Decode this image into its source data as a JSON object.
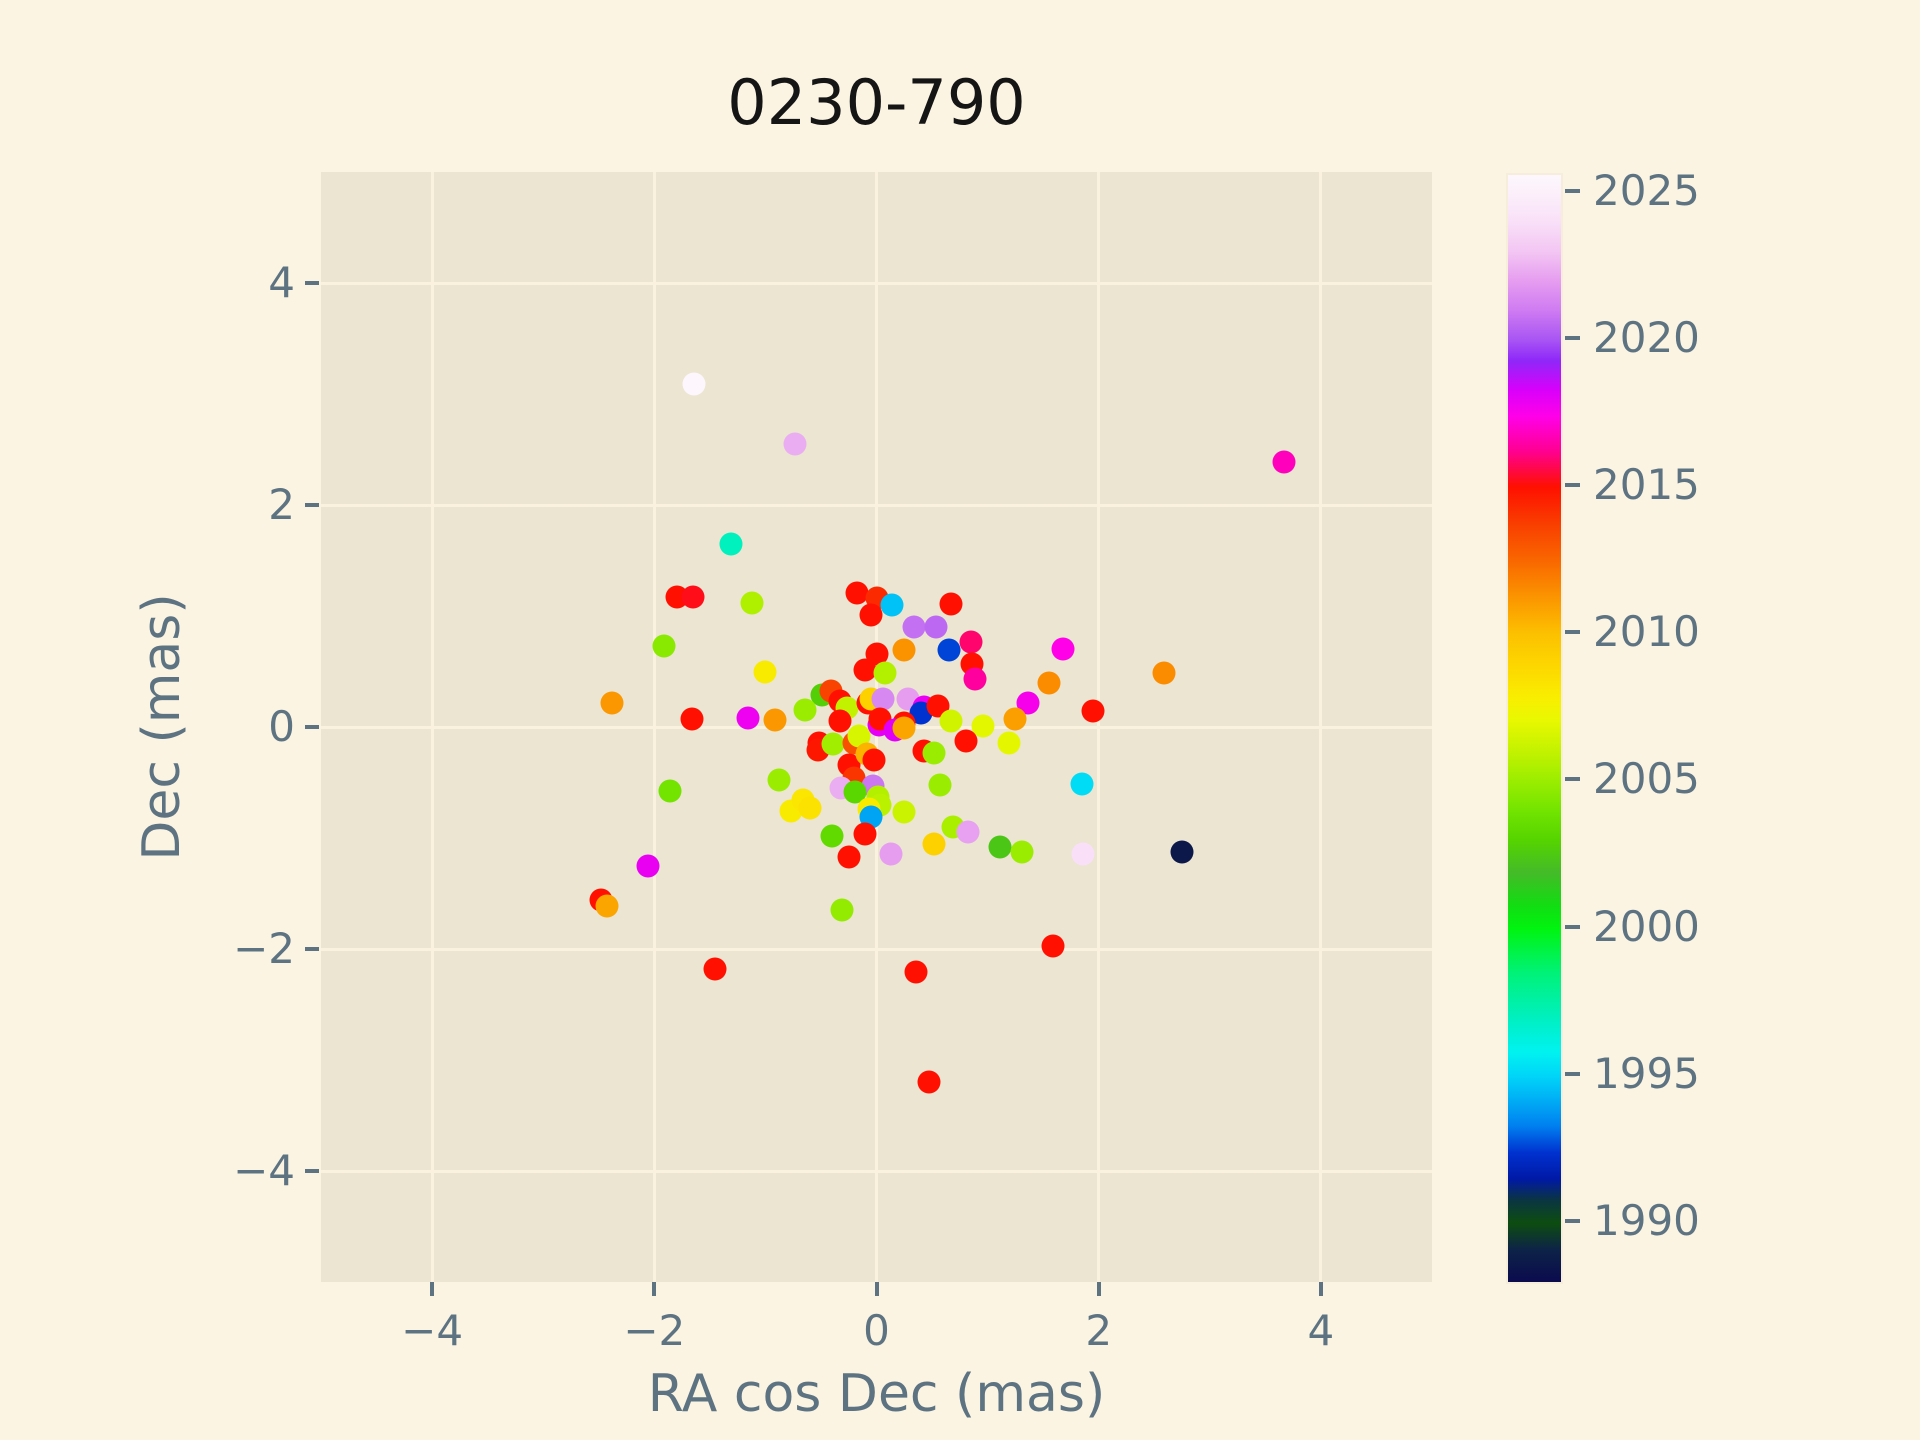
{
  "title": "0230-790",
  "axes": {
    "xlabel": "RA cos Dec (mas)",
    "ylabel": "Dec (mas)",
    "xlim": [
      -5,
      5
    ],
    "ylim": [
      -5,
      5
    ],
    "xticks": {
      "values": [
        -4,
        -2,
        0,
        2,
        4
      ],
      "labels": [
        "−4",
        "−2",
        "0",
        "2",
        "4"
      ]
    },
    "yticks": {
      "values": [
        4,
        2,
        0,
        -2,
        -4
      ],
      "labels": [
        "4",
        "2",
        "0",
        "−2",
        "−4"
      ]
    }
  },
  "colorbar": {
    "vmin": 1988.0,
    "vmax": 2025.6,
    "ticks": {
      "values": [
        1990,
        1995,
        2000,
        2005,
        2010,
        2015,
        2020,
        2025
      ],
      "labels": [
        "1990",
        "1995",
        "2000",
        "2005",
        "2010",
        "2015",
        "2020",
        "2025"
      ]
    },
    "colormap_stops": [
      [
        1988.0,
        "#0b0b4e"
      ],
      [
        1989.1,
        "#0d2347"
      ],
      [
        1990.0,
        "#0d4d10"
      ],
      [
        1990.8,
        "#0a3444"
      ],
      [
        1991.5,
        "#0019a6"
      ],
      [
        1992.4,
        "#0032d0"
      ],
      [
        1993.3,
        "#0080f0"
      ],
      [
        1994.3,
        "#00b4f6"
      ],
      [
        1995.0,
        "#00d5f8"
      ],
      [
        1995.8,
        "#00f2f0"
      ],
      [
        1996.7,
        "#00f0cc"
      ],
      [
        1998.5,
        "#00f277"
      ],
      [
        2000.0,
        "#00f410"
      ],
      [
        2000.8,
        "#12dd12"
      ],
      [
        2001.9,
        "#44bb28"
      ],
      [
        2003.0,
        "#55d400"
      ],
      [
        2004.0,
        "#72e400"
      ],
      [
        2005.0,
        "#9aed00"
      ],
      [
        2006.0,
        "#c2f200"
      ],
      [
        2007.1,
        "#e9f800"
      ],
      [
        2007.8,
        "#f8ef00"
      ],
      [
        2008.8,
        "#fdd900"
      ],
      [
        2010.0,
        "#fcc100"
      ],
      [
        2011.3,
        "#fb9300"
      ],
      [
        2012.5,
        "#f96700"
      ],
      [
        2013.8,
        "#f93c00"
      ],
      [
        2015.0,
        "#ff1000"
      ],
      [
        2016.2,
        "#ff0090"
      ],
      [
        2017.4,
        "#ff00e8"
      ],
      [
        2018.3,
        "#d800fb"
      ],
      [
        2019.3,
        "#8f28f8"
      ],
      [
        2020.0,
        "#a855f3"
      ],
      [
        2021.0,
        "#cf7bf2"
      ],
      [
        2022.0,
        "#e69df0"
      ],
      [
        2023.0,
        "#f3c6f3"
      ],
      [
        2024.0,
        "#f9e0f8"
      ],
      [
        2025.0,
        "#fcf0fb"
      ],
      [
        2025.6,
        "#fdf7fd"
      ]
    ]
  },
  "style": {
    "fig_bg": "#fbf4e2",
    "plot_bg": "#ebe5d2",
    "grid_color": "#faf2de",
    "text_color": "#5d7382",
    "title_color": "#151515"
  },
  "chart_data": {
    "type": "scatter",
    "title": "0230-790",
    "xlabel": "RA cos Dec (mas)",
    "ylabel": "Dec (mas)",
    "xlim": [
      -5,
      5
    ],
    "ylim": [
      -5,
      5
    ],
    "grid": true,
    "legend": "colorbar (epoch year, right side)",
    "point_fields": [
      "ra_cos_dec_mas",
      "dec_mas",
      "epoch_year"
    ],
    "points": [
      [
        -1.64,
        3.09,
        2025.5
      ],
      [
        -0.73,
        2.55,
        2022.4
      ],
      [
        3.67,
        2.39,
        2016.8
      ],
      [
        -1.31,
        1.65,
        1997.0
      ],
      [
        -1.8,
        1.17,
        2015.0
      ],
      [
        -1.65,
        1.17,
        2015.2
      ],
      [
        -1.12,
        1.12,
        2005.5
      ],
      [
        -0.18,
        1.21,
        2015.0
      ],
      [
        0.0,
        1.16,
        2014.3
      ],
      [
        0.14,
        1.1,
        1994.6
      ],
      [
        -0.05,
        1.01,
        2015.0
      ],
      [
        -1.91,
        0.73,
        2004.6
      ],
      [
        -1.0,
        0.5,
        2008.0
      ],
      [
        0.0,
        0.66,
        2015.0
      ],
      [
        -0.1,
        0.51,
        2015.0
      ],
      [
        0.08,
        0.49,
        2005.6
      ],
      [
        -2.38,
        0.22,
        2011.2
      ],
      [
        -0.49,
        0.29,
        2002.8
      ],
      [
        -0.41,
        0.32,
        2013.6
      ],
      [
        -0.33,
        0.23,
        2015.0
      ],
      [
        -0.27,
        0.17,
        2006.0
      ],
      [
        -0.64,
        0.15,
        2005.0
      ],
      [
        -0.08,
        0.22,
        2015.0
      ],
      [
        -0.05,
        0.25,
        2009.2
      ],
      [
        0.06,
        0.25,
        2021.4
      ],
      [
        -1.66,
        0.07,
        2015.0
      ],
      [
        -1.16,
        0.08,
        2017.8
      ],
      [
        -0.91,
        0.06,
        2011.2
      ],
      [
        -0.33,
        0.05,
        2015.0
      ],
      [
        0.67,
        1.11,
        2015.0
      ],
      [
        0.34,
        0.9,
        2020.7
      ],
      [
        0.54,
        0.9,
        2020.5
      ],
      [
        0.25,
        0.69,
        2011.3
      ],
      [
        0.65,
        0.69,
        1992.6
      ],
      [
        0.85,
        0.77,
        2015.9
      ],
      [
        0.86,
        0.57,
        2015.0
      ],
      [
        0.89,
        0.43,
        2016.4
      ],
      [
        1.68,
        0.7,
        2017.4
      ],
      [
        1.55,
        0.4,
        2011.5
      ],
      [
        2.59,
        0.49,
        2011.5
      ],
      [
        1.36,
        0.22,
        2017.6
      ],
      [
        1.95,
        0.14,
        2015.0
      ],
      [
        0.28,
        0.25,
        2022.0
      ],
      [
        0.43,
        0.18,
        2017.9
      ],
      [
        0.4,
        0.13,
        1992.4
      ],
      [
        0.55,
        0.19,
        2015.0
      ],
      [
        0.25,
        0.04,
        2015.0
      ],
      [
        0.67,
        0.05,
        2006.4
      ],
      [
        0.96,
        0.01,
        2006.9
      ],
      [
        1.25,
        0.07,
        2011.0
      ],
      [
        0.02,
        0.02,
        2018.0
      ],
      [
        -1.86,
        -0.58,
        2004.0
      ],
      [
        -0.88,
        -0.48,
        2005.0
      ],
      [
        -0.77,
        -0.76,
        2008.0
      ],
      [
        -0.66,
        -0.66,
        2008.2
      ],
      [
        -0.6,
        -0.73,
        2008.4
      ],
      [
        -0.52,
        -0.14,
        2015.0
      ],
      [
        -0.53,
        -0.21,
        2014.8
      ],
      [
        -0.39,
        -0.15,
        2005.2
      ],
      [
        -0.2,
        -0.14,
        2013.2
      ],
      [
        -0.16,
        -0.08,
        2006.6
      ],
      [
        -0.25,
        -0.34,
        2015.0
      ],
      [
        -0.09,
        -0.24,
        2010.4
      ],
      [
        -0.02,
        -0.3,
        2015.0
      ],
      [
        -0.2,
        -0.46,
        2014.0
      ],
      [
        -0.03,
        -0.53,
        2020.9
      ],
      [
        -0.32,
        -0.55,
        2022.4
      ],
      [
        -0.19,
        -0.59,
        2003.2
      ],
      [
        0.01,
        -0.63,
        2005.6
      ],
      [
        0.03,
        -0.7,
        2005.8
      ],
      [
        -0.07,
        -0.74,
        2008.0
      ],
      [
        -0.05,
        -0.81,
        1994.0
      ],
      [
        -0.4,
        -0.98,
        2003.4
      ],
      [
        -0.1,
        -0.96,
        2015.0
      ],
      [
        -0.25,
        -1.17,
        2015.0
      ],
      [
        0.13,
        -1.14,
        2022.0
      ],
      [
        -2.06,
        -1.25,
        2017.9
      ],
      [
        -2.48,
        -1.56,
        2015.0
      ],
      [
        -2.43,
        -1.61,
        2010.8
      ],
      [
        -0.31,
        -1.65,
        2004.8
      ],
      [
        0.43,
        -0.22,
        2015.0
      ],
      [
        0.52,
        -0.23,
        2005.0
      ],
      [
        0.81,
        -0.13,
        2015.0
      ],
      [
        1.19,
        -0.14,
        2007.0
      ],
      [
        0.57,
        -0.52,
        2005.0
      ],
      [
        1.85,
        -0.51,
        1995.2
      ],
      [
        0.25,
        -0.77,
        2006.2
      ],
      [
        0.69,
        -0.9,
        2005.4
      ],
      [
        0.82,
        -0.95,
        2022.1
      ],
      [
        0.52,
        -1.05,
        2009.2
      ],
      [
        1.11,
        -1.08,
        2002.4
      ],
      [
        1.31,
        -1.13,
        2005.0
      ],
      [
        1.86,
        -1.14,
        2024.0
      ],
      [
        2.75,
        -1.13,
        1988.6
      ],
      [
        1.59,
        -1.97,
        2015.0
      ],
      [
        -1.45,
        -2.18,
        2015.0
      ],
      [
        0.36,
        -2.21,
        2015.0
      ],
      [
        0.47,
        -3.2,
        2015.0
      ],
      [
        0.03,
        0.07,
        2015.0
      ],
      [
        0.17,
        -0.03,
        2018.1
      ],
      [
        0.25,
        -0.01,
        2010.8
      ]
    ]
  }
}
